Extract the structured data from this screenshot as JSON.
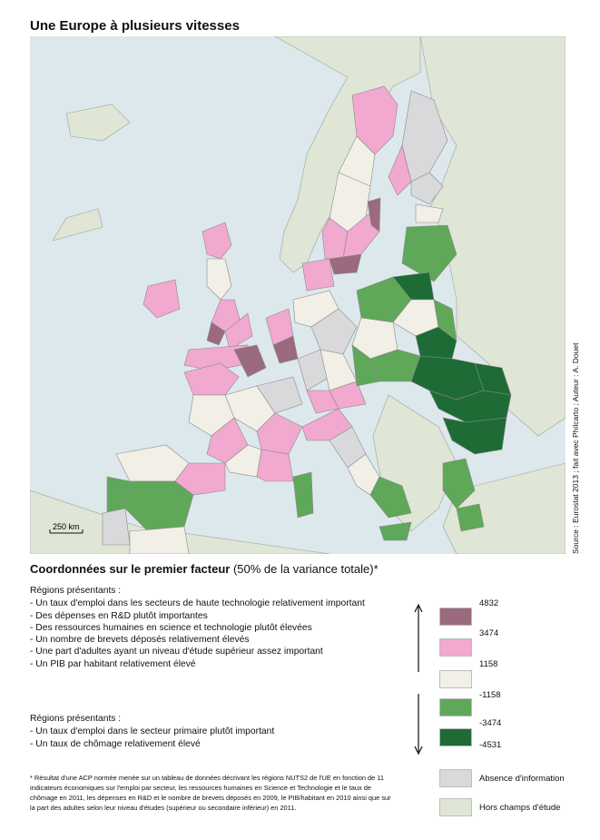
{
  "title": "Une Europe à plusieurs vitesses",
  "scale_label": "250 km",
  "source": "Source : Eurostat 2013 ; fait avec Philcarto ; Auteur : A. Douet",
  "legend": {
    "title_bold": "Coordonnées sur le premier facteur",
    "title_rest": " (50% de la variance totale)*",
    "group_high": {
      "head": "Régions présentants :",
      "items": [
        "- Un taux d'emploi dans les secteurs de haute technologie relativement important",
        "- Des dépenses en R&D plutôt importantes",
        "- Des ressources humaines en science et technologie plutôt élevées",
        "- Un nombre de brevets déposés relativement élevés",
        "- Une part d'adultes ayant un niveau d'étude supérieur assez important",
        "- Un PIB par habitant relativement élevé"
      ]
    },
    "group_low": {
      "head": "Régions présentants :",
      "items": [
        "- Un taux d'emploi dans le secteur primaire plutôt important",
        "- Un taux de chômage relativement élevé"
      ]
    },
    "class_colors": [
      "#9b6a7f",
      "#f1a9cf",
      "#f1efe6",
      "#5fa85a",
      "#1e6b35"
    ],
    "breaks": [
      "4832",
      "3474",
      "1158",
      "-1158",
      "-3474",
      "-4531"
    ],
    "no_data": {
      "label": "Absence d'information",
      "color": "#d9d9dc"
    },
    "out_of_scope": {
      "label": "Hors champs d'étude",
      "color": "#dfe6d6"
    }
  },
  "footnote": "* Résultat d'une ACP normée menée sur un tableau de données décrivant les régions NUTS2 de l'UE en fonction de 11 indicateurs économiques sur l'emploi par secteur, les ressources humaines en Science et Technologie et le taux de chômage en 2011, les dépenses en R&D et le nombre de brevets déposés en 2009, le PIB/habitant en 2010 ainsi que sur la part des adultes selon leur niveau d'études (supérieur ou secondaire inférieur) en 2011.",
  "map_colors": {
    "sea": "#dde8ed",
    "outside": "#dfe6d6",
    "border": "#8a8a8a"
  }
}
